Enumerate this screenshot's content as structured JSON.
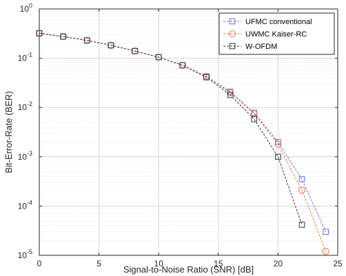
{
  "chart_data": {
    "type": "line",
    "title": "",
    "xlabel": "Signal-to-Noise Ratio (SNR) [dB]",
    "ylabel": "Bit-Error-Rate (BER)",
    "xlim": [
      0,
      25
    ],
    "ylim": [
      1e-05,
      1
    ],
    "yscale": "log",
    "grid": true,
    "legend_position": "top-right",
    "x_ticks": [
      0,
      5,
      10,
      15,
      20,
      25
    ],
    "x_tick_labels": [
      "0",
      "5",
      "10",
      "15",
      "20",
      "25"
    ],
    "y_tick_exponents": [
      -5,
      -4,
      -3,
      -2,
      -1,
      0
    ],
    "y_tick_base": "10",
    "series": [
      {
        "name": "UFMC conventional",
        "color": "#6a6ad8",
        "marker": "square",
        "x": [
          0,
          2,
          4,
          6,
          8,
          10,
          12,
          14,
          16,
          18,
          20,
          22,
          24
        ],
        "y": [
          0.32,
          0.275,
          0.23,
          0.183,
          0.14,
          0.105,
          0.072,
          0.043,
          0.021,
          0.0078,
          0.002,
          0.00035,
          3e-05
        ]
      },
      {
        "name": "UWMC Kaiser-RC",
        "color": "#e8704a",
        "marker": "circle",
        "x": [
          0,
          2,
          4,
          6,
          8,
          10,
          12,
          14,
          16,
          18,
          20,
          22,
          24
        ],
        "y": [
          0.32,
          0.275,
          0.23,
          0.183,
          0.14,
          0.105,
          0.072,
          0.043,
          0.02,
          0.0075,
          0.0018,
          0.00021,
          1.2e-05
        ]
      },
      {
        "name": "W-OFDM",
        "color": "#333333",
        "marker": "square",
        "x": [
          0,
          2,
          4,
          6,
          8,
          10,
          12,
          14,
          16,
          18,
          20,
          22
        ],
        "y": [
          0.32,
          0.275,
          0.23,
          0.183,
          0.14,
          0.105,
          0.072,
          0.041,
          0.018,
          0.0058,
          0.001,
          4.2e-05
        ]
      }
    ]
  }
}
